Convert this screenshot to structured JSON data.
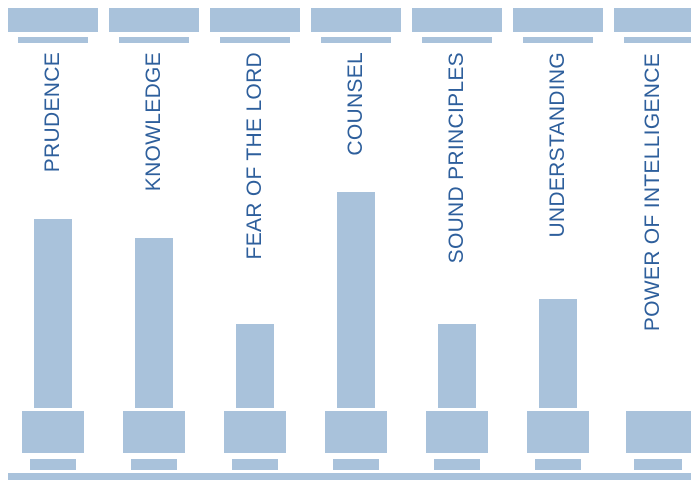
{
  "colors": {
    "pillar": "#a9c2db",
    "label": "#2e5f9c",
    "background": "#ffffff"
  },
  "pillars": [
    {
      "label": "PRUDENCE"
    },
    {
      "label": "KNOWLEDGE"
    },
    {
      "label": "FEAR OF THE LORD"
    },
    {
      "label": "COUNSEL"
    },
    {
      "label": "SOUND PRINCIPLES"
    },
    {
      "label": "UNDERSTANDING"
    },
    {
      "label": "POWER OF INTELLIGENCE"
    }
  ]
}
